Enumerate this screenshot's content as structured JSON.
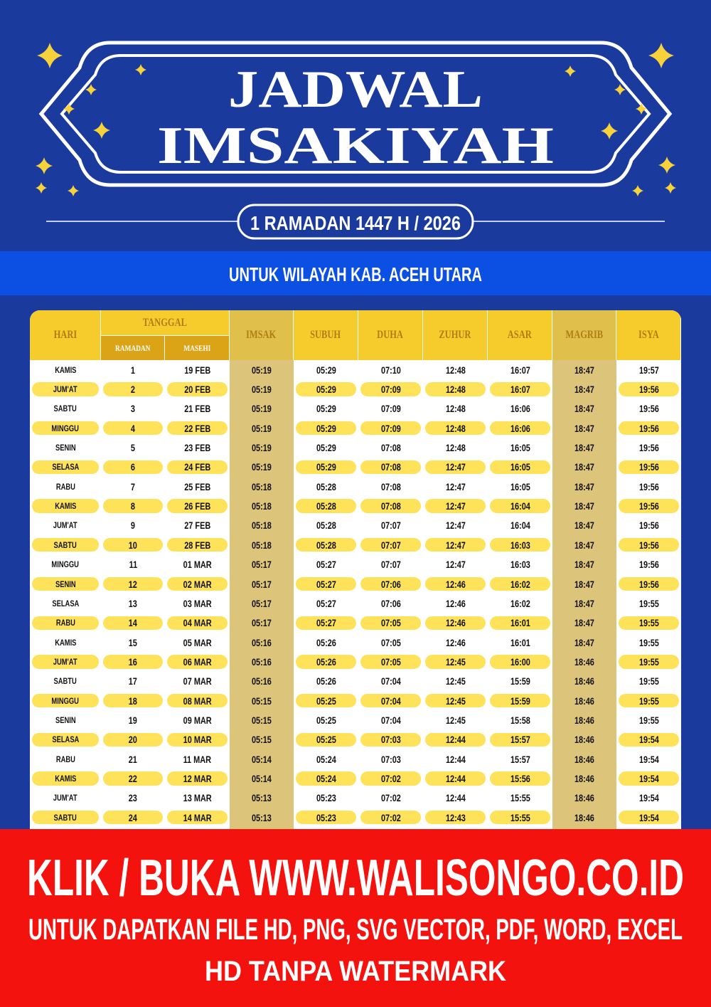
{
  "header": {
    "title_line1": "JADWAL",
    "title_line2": "IMSAKIYAH",
    "subtitle": "1 RAMADAN 1447 H / 2026"
  },
  "region": "UNTUK WILAYAH KAB. ACEH UTARA",
  "table": {
    "columns": [
      "HARI",
      "TANGGAL",
      "RAMADAN",
      "MASEHI",
      "IMSAK",
      "SUBUH",
      "DUHA",
      "ZUHUR",
      "ASAR",
      "MAGRIB",
      "ISYA"
    ],
    "rows": [
      [
        "KAMIS",
        "1",
        "19 FEB",
        "05:19",
        "05:29",
        "07:10",
        "12:48",
        "16:07",
        "18:47",
        "19:57"
      ],
      [
        "JUM'AT",
        "2",
        "20 FEB",
        "05:19",
        "05:29",
        "07:09",
        "12:48",
        "16:07",
        "18:47",
        "19:56"
      ],
      [
        "SABTU",
        "3",
        "21 FEB",
        "05:19",
        "05:29",
        "07:09",
        "12:48",
        "16:06",
        "18:47",
        "19:56"
      ],
      [
        "MINGGU",
        "4",
        "22 FEB",
        "05:19",
        "05:29",
        "07:09",
        "12:48",
        "16:06",
        "18:47",
        "19:56"
      ],
      [
        "SENIN",
        "5",
        "23 FEB",
        "05:19",
        "05:29",
        "07:08",
        "12:48",
        "16:05",
        "18:47",
        "19:56"
      ],
      [
        "SELASA",
        "6",
        "24 FEB",
        "05:19",
        "05:29",
        "07:08",
        "12:47",
        "16:05",
        "18:47",
        "19:56"
      ],
      [
        "RABU",
        "7",
        "25 FEB",
        "05:18",
        "05:28",
        "07:08",
        "12:47",
        "16:05",
        "18:47",
        "19:56"
      ],
      [
        "KAMIS",
        "8",
        "26 FEB",
        "05:18",
        "05:28",
        "07:08",
        "12:47",
        "16:04",
        "18:47",
        "19:56"
      ],
      [
        "JUM'AT",
        "9",
        "27 FEB",
        "05:18",
        "05:28",
        "07:07",
        "12:47",
        "16:04",
        "18:47",
        "19:56"
      ],
      [
        "SABTU",
        "10",
        "28 FEB",
        "05:18",
        "05:28",
        "07:07",
        "12:47",
        "16:03",
        "18:47",
        "19:56"
      ],
      [
        "MINGGU",
        "11",
        "01 MAR",
        "05:17",
        "05:27",
        "07:07",
        "12:47",
        "16:03",
        "18:47",
        "19:56"
      ],
      [
        "SENIN",
        "12",
        "02 MAR",
        "05:17",
        "05:27",
        "07:06",
        "12:46",
        "16:02",
        "18:47",
        "19:56"
      ],
      [
        "SELASA",
        "13",
        "03 MAR",
        "05:17",
        "05:27",
        "07:06",
        "12:46",
        "16:02",
        "18:47",
        "19:55"
      ],
      [
        "RABU",
        "14",
        "04 MAR",
        "05:17",
        "05:27",
        "07:05",
        "12:46",
        "16:01",
        "18:47",
        "19:55"
      ],
      [
        "KAMIS",
        "15",
        "05 MAR",
        "05:16",
        "05:26",
        "07:05",
        "12:46",
        "16:01",
        "18:47",
        "19:55"
      ],
      [
        "JUM'AT",
        "16",
        "06 MAR",
        "05:16",
        "05:26",
        "07:05",
        "12:45",
        "16:00",
        "18:46",
        "19:55"
      ],
      [
        "SABTU",
        "17",
        "07 MAR",
        "05:16",
        "05:26",
        "07:04",
        "12:45",
        "15:59",
        "18:46",
        "19:55"
      ],
      [
        "MINGGU",
        "18",
        "08 MAR",
        "05:15",
        "05:25",
        "07:04",
        "12:45",
        "15:59",
        "18:46",
        "19:55"
      ],
      [
        "SENIN",
        "19",
        "09 MAR",
        "05:15",
        "05:25",
        "07:04",
        "12:45",
        "15:58",
        "18:46",
        "19:55"
      ],
      [
        "SELASA",
        "20",
        "10 MAR",
        "05:15",
        "05:25",
        "07:03",
        "12:44",
        "15:57",
        "18:46",
        "19:54"
      ],
      [
        "RABU",
        "21",
        "11 MAR",
        "05:14",
        "05:24",
        "07:03",
        "12:44",
        "15:57",
        "18:46",
        "19:54"
      ],
      [
        "KAMIS",
        "22",
        "12 MAR",
        "05:14",
        "05:24",
        "07:02",
        "12:44",
        "15:56",
        "18:46",
        "19:54"
      ],
      [
        "JUM'AT",
        "23",
        "13 MAR",
        "05:13",
        "05:23",
        "07:02",
        "12:44",
        "15:55",
        "18:46",
        "19:54"
      ],
      [
        "SABTU",
        "24",
        "14 MAR",
        "05:13",
        "05:23",
        "07:02",
        "12:43",
        "15:55",
        "18:46",
        "19:54"
      ]
    ]
  },
  "footer": {
    "line1": "KLIK / BUKA WWW.WALISONGO.CO.ID",
    "line2": "UNTUK DAPATKAN FILE HD, PNG, SVG VECTOR, PDF, WORD, EXCEL",
    "line3": "HD TANPA WATERMARK"
  }
}
